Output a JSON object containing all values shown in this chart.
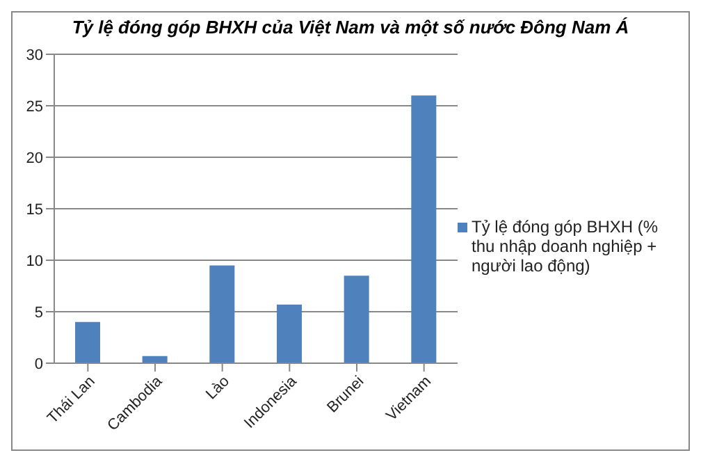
{
  "chart_data": {
    "type": "bar",
    "title": "Tỷ lệ đóng góp BHXH của Việt Nam và một số nước Đông Nam Á",
    "categories": [
      "Thái Lan",
      "Cambodia",
      "Lào",
      "Indonesia",
      "Brunei",
      "Vietnam"
    ],
    "series": [
      {
        "name": "Tỷ lệ đóng góp BHXH  (% thu nhập doanh nghiệp + người lao động)",
        "color": "#4f81bd",
        "values": [
          4,
          0.7,
          9.5,
          5.7,
          8.5,
          26
        ]
      }
    ],
    "ylim": [
      0,
      30
    ],
    "yticks": [
      0,
      5,
      10,
      15,
      20,
      25,
      30
    ],
    "grid": "y",
    "legend": "right"
  }
}
